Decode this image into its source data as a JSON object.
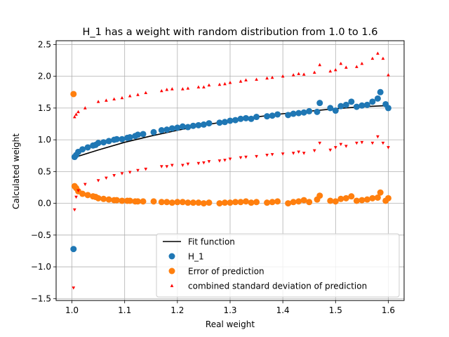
{
  "chart_data": {
    "type": "scatter",
    "title": "H_1 has a weight with random distribution from 1.0 to 1.6",
    "xlabel": "Real weight",
    "ylabel": "Calculated weight",
    "xlim": [
      0.97,
      1.63
    ],
    "ylim": [
      -1.53,
      2.56
    ],
    "xticks": [
      1.0,
      1.1,
      1.2,
      1.3,
      1.4,
      1.5,
      1.6
    ],
    "xtick_labels": [
      "1.0",
      "1.1",
      "1.2",
      "1.3",
      "1.4",
      "1.5",
      "1.6"
    ],
    "yticks": [
      -1.5,
      -1.0,
      -0.5,
      0.0,
      0.5,
      1.0,
      1.5,
      2.0,
      2.5
    ],
    "ytick_labels": [
      "−1.5",
      "−1.0",
      "−0.5",
      "0.0",
      "0.5",
      "1.0",
      "1.5",
      "2.0",
      "2.5"
    ],
    "grid": true,
    "legend_position": "lower-right",
    "legend": [
      {
        "label": "Fit function",
        "marker": "line",
        "color": "#000000"
      },
      {
        "label": "H_1",
        "marker": "circle",
        "color": "#1f77b4"
      },
      {
        "label": "Error of prediction",
        "marker": "circle",
        "color": "#ff7f0e"
      },
      {
        "label": "combined standard deviation of prediction",
        "marker": "triangle",
        "color": "#ff0000"
      }
    ],
    "series": [
      {
        "name": "Fit function",
        "style": "line",
        "color": "#000000",
        "x": [
          1.0,
          1.05,
          1.1,
          1.15,
          1.2,
          1.25,
          1.3,
          1.35,
          1.4,
          1.45,
          1.5,
          1.55,
          1.6
        ],
        "y": [
          0.71,
          0.84,
          0.96,
          1.06,
          1.15,
          1.23,
          1.3,
          1.36,
          1.41,
          1.45,
          1.49,
          1.52,
          1.54
        ]
      },
      {
        "name": "H_1",
        "style": "circle",
        "color": "#1f77b4",
        "x": [
          1.003,
          1.005,
          1.008,
          1.012,
          1.02,
          1.03,
          1.04,
          1.045,
          1.05,
          1.06,
          1.07,
          1.08,
          1.085,
          1.095,
          1.105,
          1.11,
          1.12,
          1.125,
          1.135,
          1.155,
          1.17,
          1.18,
          1.19,
          1.2,
          1.21,
          1.22,
          1.23,
          1.24,
          1.25,
          1.26,
          1.28,
          1.29,
          1.3,
          1.31,
          1.32,
          1.33,
          1.34,
          1.35,
          1.37,
          1.38,
          1.39,
          1.41,
          1.42,
          1.43,
          1.44,
          1.45,
          1.465,
          1.47,
          1.49,
          1.5,
          1.51,
          1.52,
          1.53,
          1.54,
          1.55,
          1.56,
          1.57,
          1.58,
          1.585,
          1.595,
          1.6
        ],
        "y": [
          -0.72,
          0.73,
          0.76,
          0.81,
          0.85,
          0.88,
          0.91,
          0.92,
          0.95,
          0.96,
          0.98,
          1.0,
          1.01,
          1.01,
          1.03,
          1.04,
          1.06,
          1.08,
          1.09,
          1.12,
          1.15,
          1.16,
          1.18,
          1.19,
          1.21,
          1.2,
          1.22,
          1.23,
          1.24,
          1.26,
          1.27,
          1.28,
          1.3,
          1.31,
          1.33,
          1.34,
          1.33,
          1.36,
          1.37,
          1.38,
          1.4,
          1.39,
          1.41,
          1.42,
          1.43,
          1.45,
          1.44,
          1.58,
          1.5,
          1.46,
          1.53,
          1.55,
          1.6,
          1.52,
          1.54,
          1.55,
          1.6,
          1.65,
          1.75,
          1.56,
          1.5
        ]
      },
      {
        "name": "Error of prediction",
        "style": "circle",
        "color": "#ff7f0e",
        "x": [
          1.003,
          1.005,
          1.008,
          1.012,
          1.02,
          1.03,
          1.04,
          1.045,
          1.05,
          1.06,
          1.07,
          1.08,
          1.085,
          1.095,
          1.105,
          1.11,
          1.12,
          1.125,
          1.135,
          1.155,
          1.17,
          1.18,
          1.19,
          1.2,
          1.21,
          1.22,
          1.23,
          1.24,
          1.25,
          1.26,
          1.28,
          1.29,
          1.3,
          1.31,
          1.32,
          1.33,
          1.34,
          1.35,
          1.37,
          1.38,
          1.39,
          1.41,
          1.42,
          1.43,
          1.44,
          1.45,
          1.465,
          1.47,
          1.49,
          1.5,
          1.51,
          1.52,
          1.53,
          1.54,
          1.55,
          1.56,
          1.57,
          1.58,
          1.585,
          1.595,
          1.6
        ],
        "y": [
          1.72,
          0.27,
          0.24,
          0.19,
          0.15,
          0.13,
          0.11,
          0.1,
          0.08,
          0.07,
          0.06,
          0.05,
          0.05,
          0.04,
          0.04,
          0.04,
          0.03,
          0.03,
          0.03,
          0.03,
          0.02,
          0.02,
          0.01,
          0.02,
          0.02,
          0.01,
          0.01,
          0.01,
          0.0,
          0.01,
          0.0,
          0.01,
          0.01,
          0.02,
          0.02,
          0.03,
          0.01,
          0.02,
          0.01,
          0.02,
          0.03,
          0.0,
          0.02,
          0.03,
          0.05,
          0.02,
          0.06,
          0.12,
          0.04,
          0.03,
          0.07,
          0.08,
          0.11,
          0.04,
          0.05,
          0.06,
          0.08,
          0.09,
          0.17,
          0.04,
          0.08
        ]
      },
      {
        "name": "combined standard deviation of prediction (upper)",
        "style": "triangle-up",
        "color": "#ff0000",
        "x": [
          1.005,
          1.008,
          1.012,
          1.025,
          1.05,
          1.065,
          1.08,
          1.095,
          1.11,
          1.125,
          1.14,
          1.17,
          1.18,
          1.19,
          1.21,
          1.22,
          1.24,
          1.25,
          1.26,
          1.28,
          1.29,
          1.3,
          1.32,
          1.33,
          1.35,
          1.37,
          1.38,
          1.4,
          1.42,
          1.43,
          1.44,
          1.46,
          1.47,
          1.49,
          1.5,
          1.51,
          1.52,
          1.54,
          1.55,
          1.57,
          1.58,
          1.59,
          1.6
        ],
        "y": [
          1.36,
          1.4,
          1.44,
          1.5,
          1.6,
          1.62,
          1.64,
          1.66,
          1.69,
          1.71,
          1.74,
          1.77,
          1.79,
          1.8,
          1.8,
          1.81,
          1.83,
          1.83,
          1.86,
          1.87,
          1.88,
          1.9,
          1.92,
          1.94,
          1.95,
          1.97,
          1.98,
          2.0,
          2.02,
          2.04,
          2.03,
          2.06,
          2.18,
          2.08,
          2.1,
          2.2,
          2.14,
          2.15,
          2.2,
          2.28,
          2.36,
          2.28,
          2.02
        ]
      },
      {
        "name": "combined standard deviation of prediction (lower)",
        "style": "triangle-down",
        "color": "#ff0000",
        "x": [
          1.003,
          1.005,
          1.008,
          1.012,
          1.025,
          1.05,
          1.065,
          1.08,
          1.095,
          1.11,
          1.125,
          1.14,
          1.17,
          1.18,
          1.19,
          1.21,
          1.22,
          1.24,
          1.25,
          1.26,
          1.28,
          1.29,
          1.3,
          1.32,
          1.33,
          1.35,
          1.37,
          1.38,
          1.4,
          1.42,
          1.43,
          1.44,
          1.46,
          1.47,
          1.49,
          1.5,
          1.51,
          1.52,
          1.54,
          1.55,
          1.57,
          1.58,
          1.59,
          1.6
        ],
        "y": [
          -1.33,
          -0.1,
          0.1,
          0.2,
          0.3,
          0.36,
          0.4,
          0.44,
          0.47,
          0.49,
          0.52,
          0.54,
          0.58,
          0.58,
          0.6,
          0.6,
          0.62,
          0.63,
          0.64,
          0.66,
          0.67,
          0.68,
          0.7,
          0.72,
          0.73,
          0.74,
          0.76,
          0.77,
          0.78,
          0.79,
          0.81,
          0.79,
          0.83,
          0.95,
          0.84,
          0.88,
          0.93,
          0.9,
          0.95,
          0.96,
          0.95,
          1.05,
          0.95,
          0.88
        ]
      }
    ]
  }
}
